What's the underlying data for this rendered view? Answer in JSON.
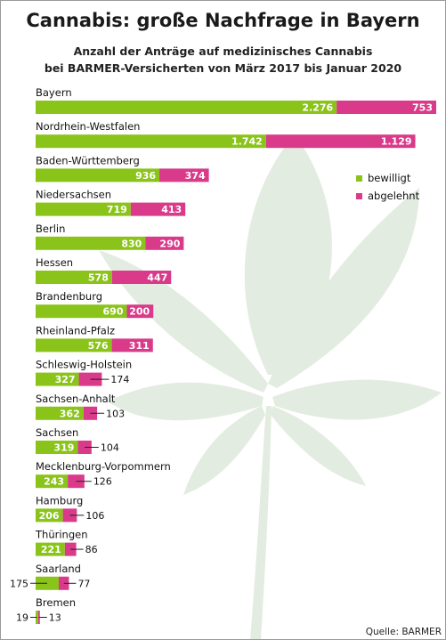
{
  "title": "Cannabis: große Nachfrage in Bayern",
  "subtitle_line1": "Anzahl der Anträge auf medizinisches Cannabis",
  "subtitle_line2": "bei BARMER-Versicherten von März 2017 bis Januar 2020",
  "source": "Quelle: BARMER",
  "colors": {
    "bewilligt": "#8ac41a",
    "abgelehnt": "#d93a8a",
    "leaf": "#e3ece0"
  },
  "chart_data": {
    "type": "bar",
    "orientation": "horizontal",
    "stacked": true,
    "categories": [
      "Bayern",
      "Nordrhein-Westfalen",
      "Baden-Württemberg",
      "Niedersachsen",
      "Berlin",
      "Hessen",
      "Brandenburg",
      "Rheinland-Pfalz",
      "Schleswig-Holstein",
      "Sachsen-Anhalt",
      "Sachsen",
      "Mecklenburg-Vorpommern",
      "Hamburg",
      "Thüringen",
      "Saarland",
      "Bremen"
    ],
    "series": [
      {
        "name": "bewilligt",
        "values": [
          2276,
          1742,
          936,
          719,
          830,
          578,
          690,
          576,
          327,
          362,
          319,
          243,
          206,
          221,
          175,
          19
        ]
      },
      {
        "name": "abgelehnt",
        "values": [
          753,
          1129,
          374,
          413,
          290,
          447,
          200,
          311,
          174,
          103,
          104,
          126,
          106,
          86,
          77,
          13
        ]
      }
    ],
    "value_labels": {
      "bewilligt": [
        "2.276",
        "1.742",
        "936",
        "719",
        "830",
        "578",
        "690",
        "576",
        "327",
        "362",
        "319",
        "243",
        "206",
        "221",
        "175",
        "19"
      ],
      "abgelehnt": [
        "753",
        "1.129",
        "374",
        "413",
        "290",
        "447",
        "200",
        "311",
        "174",
        "103",
        "104",
        "126",
        "106",
        "86",
        "77",
        "13"
      ]
    },
    "legend": {
      "position": "right",
      "entries": [
        "bewilligt",
        "abgelehnt"
      ]
    },
    "xlim": [
      0,
      3029
    ],
    "grid": false
  }
}
